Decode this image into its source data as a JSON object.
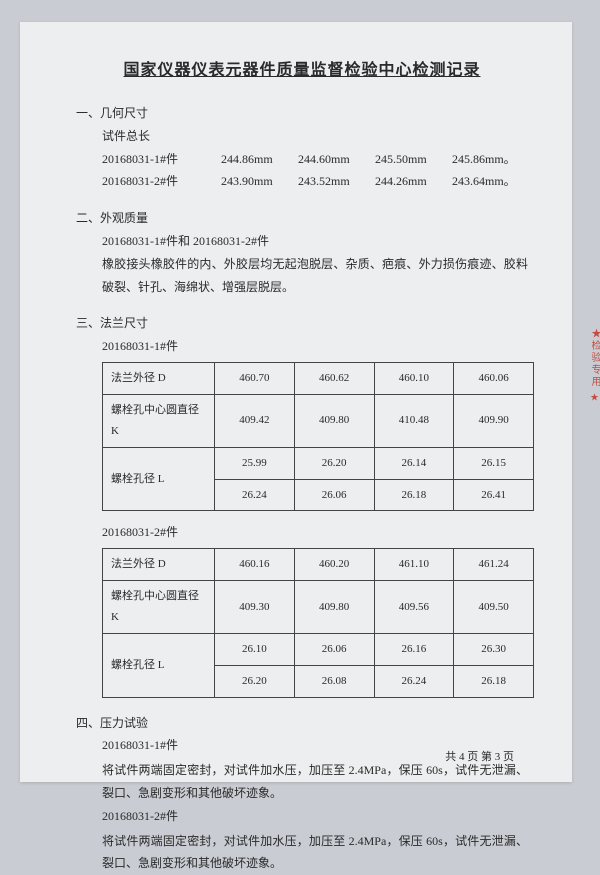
{
  "title": "国家仪器仪表元器件质量监督检验中心检测记录",
  "stamp_text": "★检验专用 ★",
  "sec1": {
    "head": "一、几何尺寸",
    "sub": "试件总长",
    "r1": {
      "label": "20168031-1#件",
      "v": [
        "244.86mm",
        "244.60mm",
        "245.50mm",
        "245.86mm。"
      ]
    },
    "r2": {
      "label": "20168031-2#件",
      "v": [
        "243.90mm",
        "243.52mm",
        "244.26mm",
        "243.64mm。"
      ]
    }
  },
  "sec2": {
    "head": "二、外观质量",
    "line1": "20168031-1#件和 20168031-2#件",
    "line2": "橡胶接头橡胶件的内、外胶层均无起泡脱层、杂质、疤痕、外力损伤痕迹、胶料破裂、针孔、海绵状、增强层脱层。"
  },
  "sec3": {
    "head": "三、法兰尺寸",
    "t1": {
      "label": "20168031-1#件",
      "rows": [
        {
          "lab": "法兰外径 D",
          "v": [
            "460.70",
            "460.62",
            "460.10",
            "460.06"
          ]
        },
        {
          "lab": "螺栓孔中心圆直径 K",
          "v": [
            "409.42",
            "409.80",
            "410.48",
            "409.90"
          ]
        },
        {
          "lab": "螺栓孔径 L",
          "rowspan": 2,
          "v": [
            "25.99",
            "26.20",
            "26.14",
            "26.15"
          ]
        },
        {
          "v": [
            "26.24",
            "26.06",
            "26.18",
            "26.41"
          ]
        }
      ]
    },
    "t2": {
      "label": "20168031-2#件",
      "rows": [
        {
          "lab": "法兰外径 D",
          "v": [
            "460.16",
            "460.20",
            "461.10",
            "461.24"
          ]
        },
        {
          "lab": "螺栓孔中心圆直径 K",
          "v": [
            "409.30",
            "409.80",
            "409.56",
            "409.50"
          ]
        },
        {
          "lab": "螺栓孔径 L",
          "rowspan": 2,
          "v": [
            "26.10",
            "26.06",
            "26.16",
            "26.30"
          ]
        },
        {
          "v": [
            "26.20",
            "26.08",
            "26.24",
            "26.18"
          ]
        }
      ]
    }
  },
  "sec4": {
    "head": "四、压力试验",
    "p1": {
      "label": "20168031-1#件",
      "text": "将试件两端固定密封，对试件加水压，加压至 2.4MPa，保压 60s，试件无泄漏、裂口、急剧变形和其他破坏迹象。"
    },
    "p2": {
      "label": "20168031-2#件",
      "text": "将试件两端固定密封，对试件加水压，加压至 2.4MPa，保压 60s，试件无泄漏、裂口、急剧变形和其他破坏迹象。"
    }
  },
  "footer": "共 4 页 第 3 页"
}
